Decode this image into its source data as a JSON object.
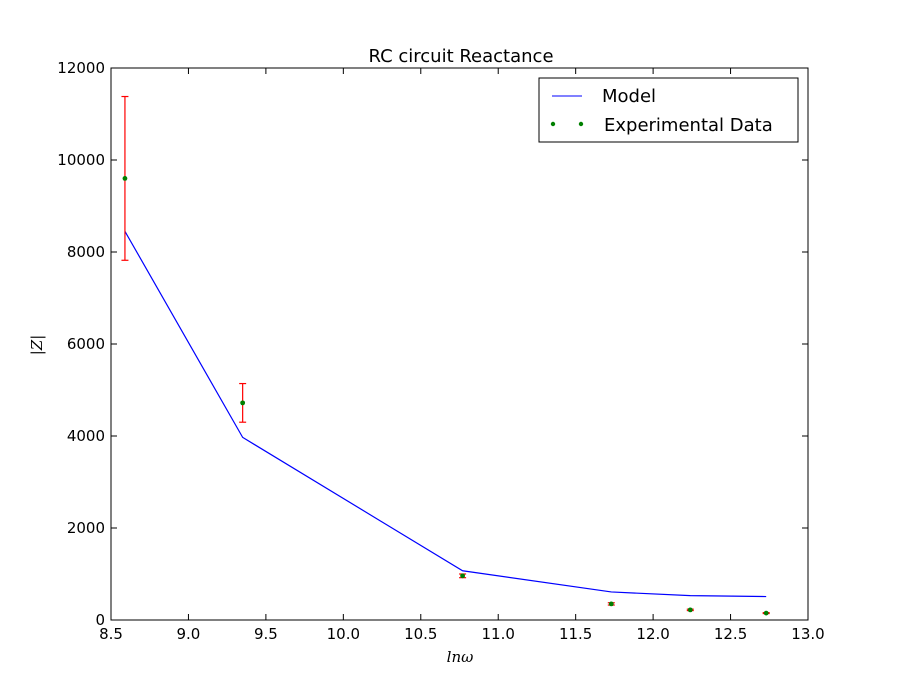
{
  "chart_data": {
    "type": "line",
    "title": "RC circuit Reactance",
    "xlabel": "lnω",
    "ylabel": "|Z|",
    "xlim": [
      8.5,
      13.0
    ],
    "ylim": [
      0,
      12000
    ],
    "xticks": [
      "8.5",
      "9.0",
      "9.5",
      "10.0",
      "10.5",
      "11.0",
      "11.5",
      "12.0",
      "12.5",
      "13.0"
    ],
    "yticks": [
      "0",
      "2000",
      "4000",
      "6000",
      "8000",
      "10000",
      "12000"
    ],
    "grid": false,
    "legend_position": "top-right",
    "series": [
      {
        "name": "Model",
        "kind": "line",
        "color": "#0000ff",
        "x": [
          8.59,
          9.35,
          10.77,
          11.73,
          12.24,
          12.73
        ],
        "y": [
          8450,
          3970,
          1070,
          610,
          530,
          510
        ]
      },
      {
        "name": "Experimental Data",
        "kind": "scatter",
        "color": "#008000",
        "errorbar_color": "#ff0000",
        "x": [
          8.59,
          9.35,
          10.77,
          11.73,
          12.24,
          12.73
        ],
        "y": [
          9600,
          4720,
          960,
          350,
          220,
          150
        ],
        "yerr": [
          1780,
          420,
          40,
          25,
          15,
          10
        ]
      }
    ]
  }
}
